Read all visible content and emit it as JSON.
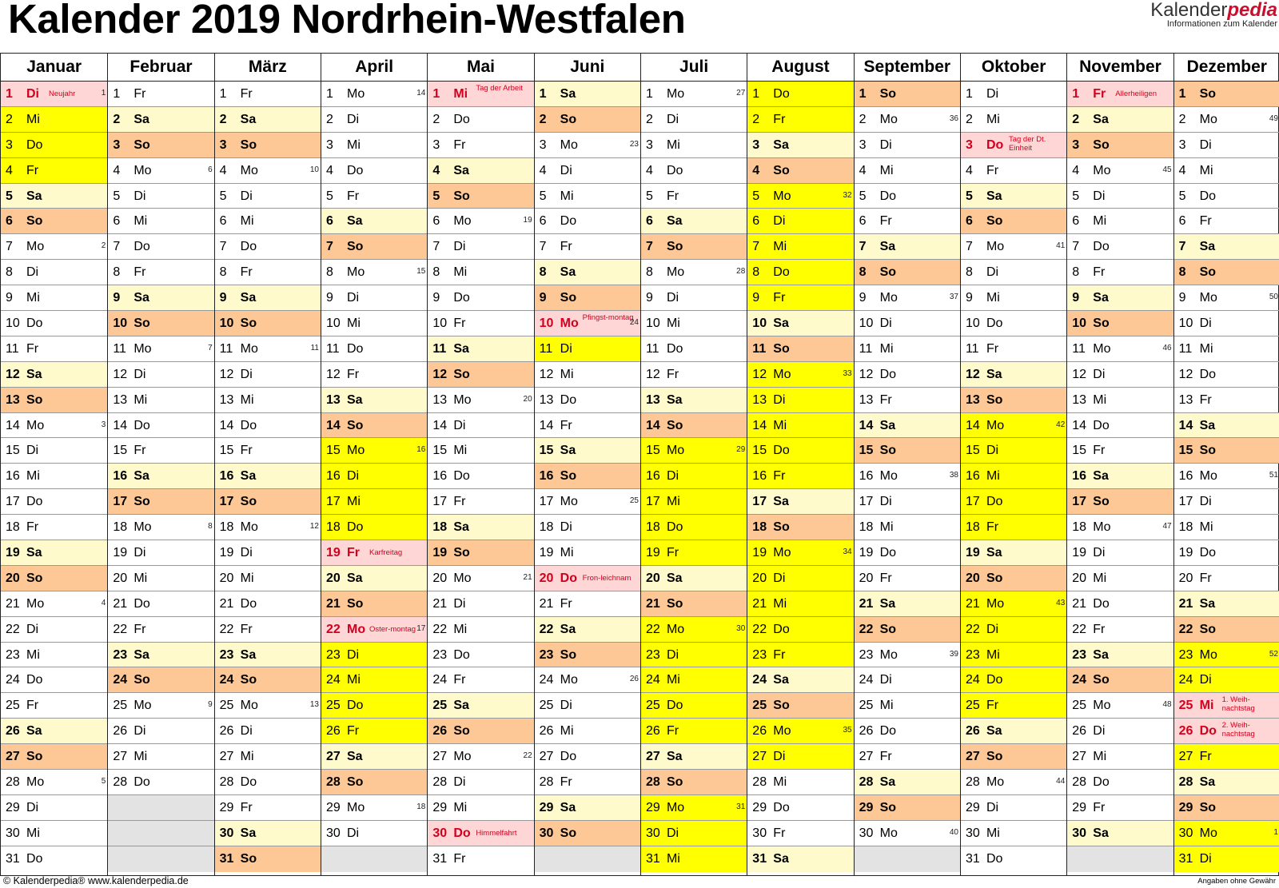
{
  "title": "Kalender 2019 Nordrhein-Westfalen",
  "logo": {
    "brand_main": "Kalender",
    "brand_accent": "pedia",
    "subtitle": "Informationen zum Kalender"
  },
  "footer": {
    "left": "© Kalenderpedia®   www.kalenderpedia.de",
    "right": "Angaben ohne Gewähr"
  },
  "colors": {
    "saturday": "#fffacc",
    "sunday": "#fdc896",
    "holiday": "#ffd6d6",
    "school_holiday": "#ffff00",
    "empty": "#e3e3e3",
    "holiday_text": "#d2001e"
  },
  "months": [
    {
      "name": "Januar",
      "first_weekday": 1,
      "days": 31,
      "holidays": {
        "1": "Neujahr"
      },
      "school": [
        1,
        2,
        3,
        4,
        5,
        6
      ]
    },
    {
      "name": "Februar",
      "first_weekday": 4,
      "days": 28,
      "holidays": {},
      "school": []
    },
    {
      "name": "März",
      "first_weekday": 4,
      "days": 31,
      "holidays": {},
      "school": []
    },
    {
      "name": "April",
      "first_weekday": 0,
      "days": 30,
      "holidays": {
        "19": "Karfreitag",
        "22": "Oster-montag"
      },
      "school": [
        15,
        16,
        17,
        18,
        19,
        20,
        21,
        22,
        23,
        24,
        25,
        26,
        27
      ]
    },
    {
      "name": "Mai",
      "first_weekday": 2,
      "days": 31,
      "holidays": {
        "1": "Tag der Arbeit",
        "30": "Himmelfahrt"
      },
      "school": []
    },
    {
      "name": "Juni",
      "first_weekday": 5,
      "days": 30,
      "holidays": {
        "10": "Pfingst-montag",
        "20": "Fron-leichnam"
      },
      "school": [
        11
      ]
    },
    {
      "name": "Juli",
      "first_weekday": 0,
      "days": 31,
      "holidays": {},
      "school": [
        15,
        16,
        17,
        18,
        19,
        20,
        21,
        22,
        23,
        24,
        25,
        26,
        27,
        28,
        29,
        30,
        31
      ]
    },
    {
      "name": "August",
      "first_weekday": 3,
      "days": 31,
      "holidays": {},
      "school": [
        1,
        2,
        3,
        4,
        5,
        6,
        7,
        8,
        9,
        10,
        11,
        12,
        13,
        14,
        15,
        16,
        17,
        18,
        19,
        20,
        21,
        22,
        23,
        24,
        25,
        26,
        27
      ]
    },
    {
      "name": "September",
      "first_weekday": 6,
      "days": 30,
      "holidays": {},
      "school": []
    },
    {
      "name": "Oktober",
      "first_weekday": 1,
      "days": 31,
      "holidays": {
        "3": "Tag der Dt. Einheit"
      },
      "school": [
        14,
        15,
        16,
        17,
        18,
        19,
        20,
        21,
        22,
        23,
        24,
        25,
        26
      ]
    },
    {
      "name": "November",
      "first_weekday": 4,
      "days": 30,
      "holidays": {
        "1": "Allerheiligen"
      },
      "school": []
    },
    {
      "name": "Dezember",
      "first_weekday": 6,
      "days": 31,
      "holidays": {
        "25": "1. Weih-nachtstag",
        "26": "2. Weih-nachtstag"
      },
      "school": [
        23,
        24,
        25,
        26,
        27,
        28,
        29,
        30,
        31
      ]
    }
  ],
  "weekday_abbr": [
    "Mo",
    "Di",
    "Mi",
    "Do",
    "Fr",
    "Sa",
    "So"
  ],
  "week_numbers": {
    "Januar": {
      "1": "1",
      "7": "2",
      "14": "3",
      "21": "4",
      "28": "5"
    },
    "Februar": {
      "4": "6",
      "11": "7",
      "18": "8",
      "25": "9"
    },
    "März": {
      "4": "10",
      "11": "11",
      "18": "12",
      "25": "13"
    },
    "April": {
      "1": "14",
      "8": "15",
      "15": "16",
      "22": "17",
      "29": "18"
    },
    "Mai": {
      "6": "19",
      "13": "20",
      "20": "21",
      "27": "22"
    },
    "Juni": {
      "3": "23",
      "10": "24",
      "17": "25",
      "24": "26"
    },
    "Juli": {
      "1": "27",
      "8": "28",
      "15": "29",
      "22": "30",
      "29": "31"
    },
    "August": {
      "5": "32",
      "12": "33",
      "19": "34",
      "26": "35"
    },
    "September": {
      "2": "36",
      "9": "37",
      "16": "38",
      "23": "39",
      "30": "40"
    },
    "Oktober": {
      "7": "41",
      "14": "42",
      "21": "43",
      "28": "44"
    },
    "November": {
      "4": "45",
      "11": "46",
      "18": "47",
      "25": "48"
    },
    "Dezember": {
      "2": "49",
      "9": "50",
      "16": "51",
      "23": "52",
      "30": "1"
    }
  }
}
